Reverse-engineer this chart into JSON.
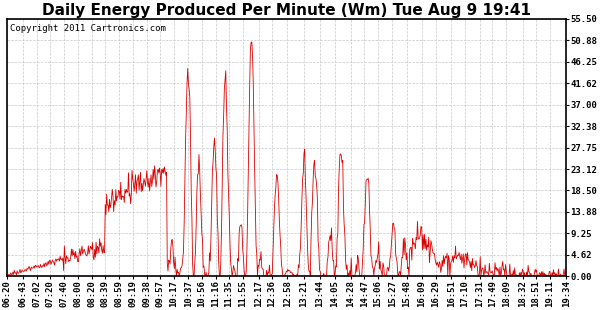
{
  "title": "Daily Energy Produced Per Minute (Wm) Tue Aug 9 19:41",
  "copyright": "Copyright 2011 Cartronics.com",
  "yticks": [
    0.0,
    4.62,
    9.25,
    13.88,
    18.5,
    23.12,
    27.75,
    32.38,
    37.0,
    41.62,
    46.25,
    50.88,
    55.5
  ],
  "ymax": 55.5,
  "ymin": 0.0,
  "line_color": "#DD0000",
  "background_color": "#FFFFFF",
  "grid_color": "#BBBBBB",
  "title_fontsize": 11,
  "copyright_fontsize": 6.5,
  "tick_fontsize": 6.5,
  "xtick_labels": [
    "06:20",
    "06:43",
    "07:02",
    "07:20",
    "07:40",
    "08:00",
    "08:20",
    "08:39",
    "08:59",
    "09:19",
    "09:38",
    "09:57",
    "10:17",
    "10:37",
    "10:56",
    "11:16",
    "11:35",
    "11:55",
    "12:17",
    "12:36",
    "12:58",
    "13:21",
    "13:44",
    "14:05",
    "14:28",
    "14:47",
    "15:06",
    "15:27",
    "15:48",
    "16:09",
    "16:29",
    "16:51",
    "17:10",
    "17:31",
    "17:49",
    "18:09",
    "18:32",
    "18:51",
    "19:11",
    "19:34"
  ],
  "num_points": 794
}
